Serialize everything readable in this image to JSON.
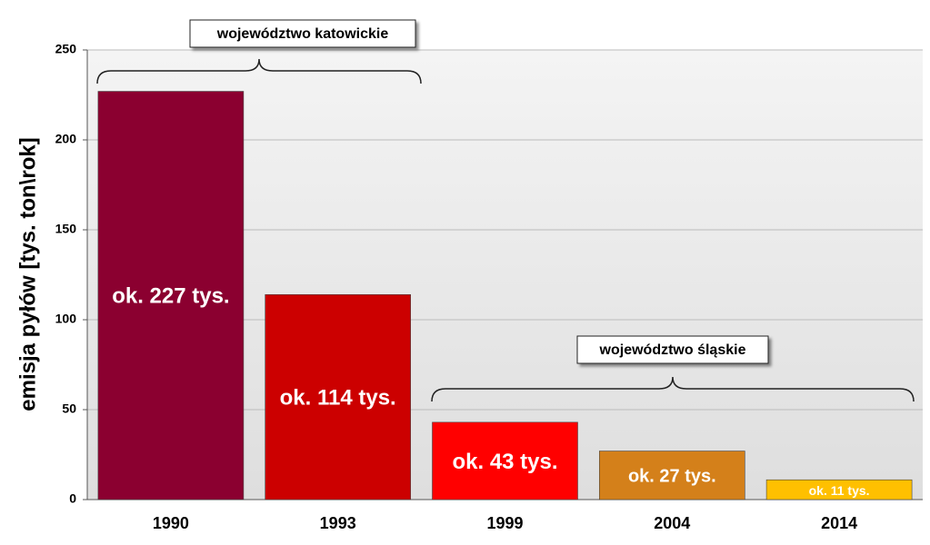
{
  "chart_data": {
    "type": "bar",
    "y_label": "emisja pyłów [tys. ton\\rok]",
    "categories": [
      "1990",
      "1993",
      "1999",
      "2004",
      "2014"
    ],
    "values": [
      227,
      114,
      43,
      27,
      11
    ],
    "value_labels": [
      "ok. 227 tys.",
      "ok. 114 tys.",
      "ok. 43 tys.",
      "ok. 27 tys.",
      "ok. 11 tys."
    ],
    "colors": [
      "#8b0030",
      "#cc0000",
      "#ff0000",
      "#d4801a",
      "#ffc000"
    ],
    "ylim": [
      0,
      250
    ],
    "yticks": [
      0,
      50,
      100,
      150,
      200,
      250
    ],
    "grid": true,
    "annotations": [
      "województwo katowickie",
      "województwo śląskie"
    ]
  }
}
